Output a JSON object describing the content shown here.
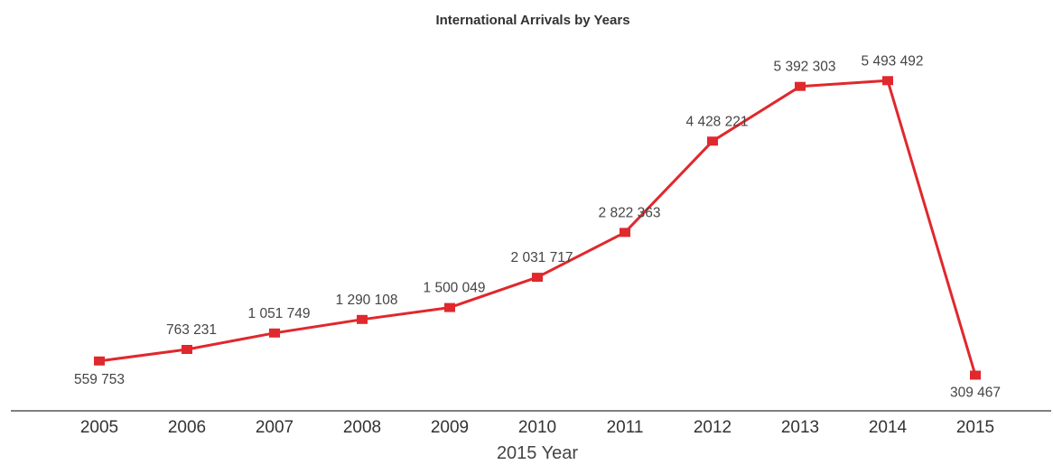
{
  "chart_data": {
    "type": "line",
    "title": "International Arrivals by  Years",
    "xlabel": "2015 Year",
    "ylabel": "",
    "categories": [
      "2005",
      "2006",
      "2007",
      "2008",
      "2009",
      "2010",
      "2011",
      "2012",
      "2013",
      "2014",
      "2015"
    ],
    "series": [
      {
        "values": [
          559753,
          763231,
          1051749,
          1290108,
          1500049,
          2031717,
          2822363,
          4428221,
          5392303,
          5493492,
          309467
        ],
        "labels": [
          "559 753",
          "763 231",
          "1 051 749",
          "1 290 108",
          "1 500 049",
          "2 031 717",
          "2 822 363",
          "4 428 221",
          "5 392 303",
          "5 493 492",
          "309 467"
        ]
      }
    ],
    "ylim": [
      0,
      5800000
    ],
    "grid": false,
    "legend": "none",
    "colors": {
      "line": "#e0282d",
      "axis": "#555555",
      "text": "#333333"
    }
  }
}
